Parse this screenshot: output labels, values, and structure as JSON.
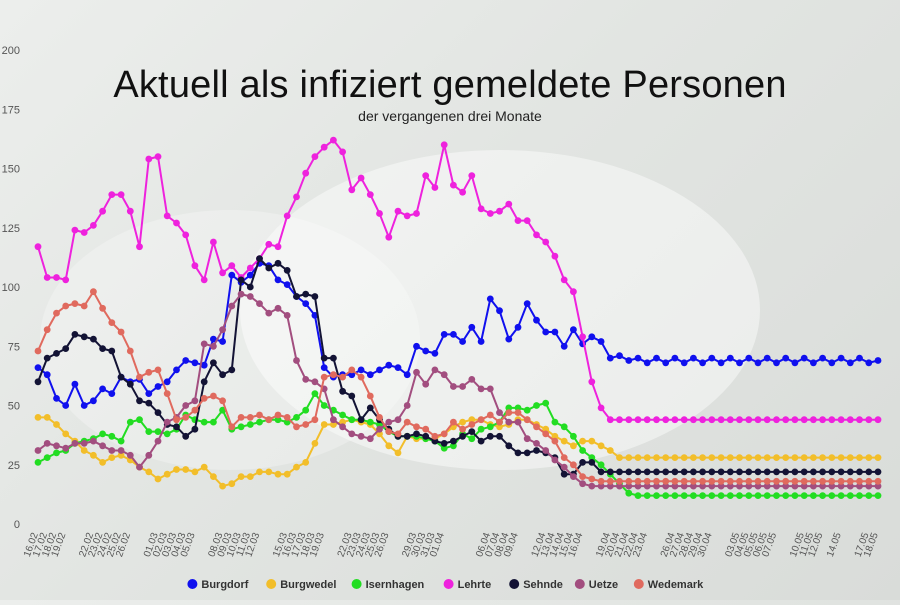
{
  "chart_data": {
    "type": "line",
    "title": "Aktuell als infiziert gemeldete Personen",
    "subtitle": "der vergangenen drei Monate",
    "ylim": [
      0,
      200
    ],
    "yticks": [
      0,
      25,
      50,
      75,
      100,
      125,
      150,
      175,
      200
    ],
    "grid": false,
    "legend_position": "bottom",
    "x": [
      "16.02",
      "17.02",
      "18.02",
      "19.02",
      "20.02",
      "21.02",
      "22.02",
      "23.02",
      "24.02",
      "25.02",
      "26.02",
      "27.02",
      "28.02",
      "01.03",
      "02.03",
      "03.03",
      "04.03",
      "05.03",
      "06.03",
      "07.03",
      "08.03",
      "09.03",
      "10.03",
      "11.03",
      "12.03",
      "13.03",
      "14.03",
      "15.03",
      "16.03",
      "17.03",
      "18.03",
      "19.03",
      "20.03",
      "21.03",
      "22.03",
      "23.03",
      "24.03",
      "25.03",
      "26.03",
      "27.03",
      "28.03",
      "29.03",
      "30.03",
      "31.03",
      "01.04",
      "02.04",
      "03.04",
      "04.04",
      "05.04",
      "06.04",
      "07.04",
      "08.04",
      "09.04",
      "10.04",
      "11.04",
      "12.04",
      "13.04",
      "14.04",
      "15.04",
      "16.04",
      "17.04",
      "18.04",
      "19.04",
      "20.04",
      "21.04",
      "22.04",
      "23.04",
      "24.04",
      "25.04",
      "26.04",
      "27.04",
      "28.04",
      "29.04",
      "30.04",
      "01.05",
      "02.05",
      "03.05",
      "04.05",
      "05.05",
      "06.05",
      "07.05",
      "08.05",
      "09.05",
      "10.05",
      "11.05",
      "12.05",
      "13.05",
      "14.05",
      "15.05",
      "16.05",
      "17.05",
      "18.05"
    ],
    "xtick_labels": [
      "16.02",
      "17.02",
      "18.02",
      "19.02",
      "22.02",
      "23.02",
      "24.02",
      "25.02",
      "26.02",
      "01.03",
      "02.03",
      "03.03",
      "04.03",
      "05.03",
      "08.03",
      "09.03",
      "10.03",
      "11.03",
      "12.03",
      "15.03",
      "16.03",
      "17.03",
      "18.03",
      "19.03",
      "22.03",
      "23.03",
      "24.03",
      "25.03",
      "26.03",
      "29.03",
      "30.03",
      "31.03",
      "01.04",
      "06.04",
      "07.04",
      "08.04",
      "09.04",
      "12.04",
      "13.04",
      "14.04",
      "15.04",
      "16.04",
      "19.04",
      "20.04",
      "21.04",
      "22.04",
      "23.04",
      "26.04",
      "27.04",
      "28.04",
      "29.04",
      "30.04",
      "03.05",
      "04.05",
      "05.05",
      "06.05",
      "07.05",
      "10.05",
      "11.05",
      "12.05",
      "14.05",
      "17.05",
      "18.05"
    ],
    "series": [
      {
        "name": "Burgdorf",
        "color": "#1010ee",
        "values": [
          66,
          63,
          53,
          50,
          59,
          50,
          52,
          57,
          55,
          62,
          60,
          61,
          55,
          58,
          60,
          65,
          69,
          68,
          67,
          78,
          77,
          105,
          102,
          105,
          110,
          109,
          103,
          101,
          96,
          93,
          88,
          66,
          62,
          63,
          63,
          65,
          63,
          65,
          67,
          66,
          63,
          75,
          73,
          72,
          80,
          80,
          77,
          83,
          77,
          95,
          90,
          78,
          83,
          93,
          86,
          81,
          81,
          75,
          82,
          76,
          79,
          77,
          70,
          71,
          69,
          70,
          68,
          70,
          68,
          70,
          68,
          70,
          68,
          70,
          68,
          70,
          68,
          70,
          68,
          70,
          68,
          70,
          68,
          70,
          68,
          70,
          68,
          70,
          68,
          70,
          68,
          69
        ]
      },
      {
        "name": "Burgwedel",
        "color": "#f2be2a",
        "values": [
          45,
          45,
          42,
          38,
          35,
          31,
          29,
          26,
          28,
          29,
          27,
          24,
          22,
          19,
          21,
          23,
          23,
          22,
          24,
          20,
          16,
          17,
          20,
          20,
          22,
          22,
          21,
          21,
          24,
          26,
          34,
          42,
          42,
          43,
          44,
          43,
          42,
          38,
          33,
          30,
          37,
          36,
          36,
          36,
          38,
          41,
          43,
          44,
          44,
          42,
          41,
          42,
          44,
          44,
          42,
          40,
          37,
          35,
          33,
          35,
          35,
          33,
          31,
          28,
          28,
          28,
          28,
          28,
          28,
          28,
          28,
          28,
          28,
          28,
          28,
          28,
          28,
          28,
          28,
          28,
          28,
          28,
          28,
          28,
          28,
          28,
          28,
          28,
          28,
          28,
          28,
          28
        ]
      },
      {
        "name": "Isernhagen",
        "color": "#22dd22",
        "values": [
          26,
          28,
          30,
          31,
          34,
          35,
          36,
          38,
          37,
          35,
          43,
          44,
          39,
          39,
          38,
          40,
          46,
          44,
          43,
          43,
          48,
          40,
          41,
          42,
          43,
          44,
          44,
          43,
          45,
          48,
          55,
          50,
          48,
          46,
          44,
          44,
          43,
          42,
          39,
          37,
          37,
          37,
          36,
          35,
          32,
          33,
          38,
          36,
          40,
          41,
          43,
          49,
          49,
          48,
          50,
          51,
          43,
          41,
          37,
          31,
          28,
          25,
          21,
          17,
          13,
          12,
          12,
          12,
          12,
          12,
          12,
          12,
          12,
          12,
          12,
          12,
          12,
          12,
          12,
          12,
          12,
          12,
          12,
          12,
          12,
          12,
          12,
          12,
          12,
          12,
          12,
          12
        ]
      },
      {
        "name": "Lehrte",
        "color": "#ee22dd",
        "values": [
          117,
          104,
          104,
          103,
          124,
          123,
          126,
          132,
          139,
          139,
          132,
          117,
          154,
          155,
          130,
          127,
          122,
          109,
          103,
          119,
          106,
          109,
          104,
          108,
          112,
          118,
          117,
          130,
          138,
          148,
          155,
          159,
          162,
          157,
          141,
          146,
          139,
          131,
          121,
          132,
          130,
          131,
          147,
          142,
          160,
          143,
          140,
          147,
          133,
          131,
          132,
          135,
          128,
          128,
          122,
          119,
          113,
          103,
          98,
          79,
          60,
          49,
          44,
          44,
          44,
          44,
          44,
          44,
          44,
          44,
          44,
          44,
          44,
          44,
          44,
          44,
          44,
          44,
          44,
          44,
          44,
          44,
          44,
          44,
          44,
          44,
          44,
          44,
          44,
          44,
          44,
          44
        ]
      },
      {
        "name": "Sehnde",
        "color": "#131335",
        "values": [
          60,
          70,
          72,
          74,
          80,
          79,
          78,
          74,
          73,
          62,
          59,
          52,
          51,
          47,
          42,
          41,
          37,
          40,
          60,
          68,
          63,
          65,
          103,
          100,
          112,
          108,
          110,
          107,
          96,
          97,
          96,
          70,
          70,
          56,
          54,
          44,
          49,
          44,
          40,
          37,
          37,
          38,
          37,
          35,
          34,
          35,
          37,
          39,
          35,
          37,
          37,
          33,
          30,
          30,
          31,
          30,
          28,
          21,
          21,
          26,
          26,
          22,
          22,
          22,
          22,
          22,
          22,
          22,
          22,
          22,
          22,
          22,
          22,
          22,
          22,
          22,
          22,
          22,
          22,
          22,
          22,
          22,
          22,
          22,
          22,
          22,
          22,
          22,
          22,
          22,
          22,
          22
        ]
      },
      {
        "name": "Uetze",
        "color": "#a24e7f",
        "values": [
          31,
          34,
          33,
          32,
          34,
          34,
          35,
          33,
          31,
          31,
          29,
          24,
          29,
          35,
          43,
          45,
          50,
          52,
          76,
          75,
          82,
          92,
          97,
          96,
          93,
          89,
          91,
          88,
          69,
          61,
          60,
          57,
          44,
          41,
          38,
          37,
          36,
          40,
          43,
          44,
          50,
          64,
          59,
          65,
          63,
          58,
          58,
          61,
          57,
          57,
          47,
          43,
          43,
          36,
          34,
          31,
          27,
          24,
          20,
          17,
          16,
          16,
          16,
          16,
          16,
          16,
          16,
          16,
          16,
          16,
          16,
          16,
          16,
          16,
          16,
          16,
          16,
          16,
          16,
          16,
          16,
          16,
          16,
          16,
          16,
          16,
          16,
          16,
          16,
          16,
          16,
          16
        ]
      },
      {
        "name": "Wedemark",
        "color": "#e06a5e",
        "values": [
          73,
          82,
          89,
          92,
          93,
          92,
          98,
          91,
          85,
          81,
          73,
          62,
          64,
          65,
          55,
          44,
          45,
          48,
          53,
          54,
          52,
          41,
          45,
          45,
          46,
          44,
          46,
          45,
          41,
          42,
          44,
          62,
          63,
          62,
          65,
          62,
          54,
          45,
          39,
          38,
          43,
          41,
          40,
          37,
          38,
          43,
          40,
          42,
          44,
          46,
          43,
          47,
          47,
          44,
          41,
          38,
          35,
          28,
          25,
          20,
          19,
          18,
          18,
          18,
          18,
          18,
          18,
          18,
          18,
          18,
          18,
          18,
          18,
          18,
          18,
          18,
          18,
          18,
          18,
          18,
          18,
          18,
          18,
          18,
          18,
          18,
          18,
          18,
          18,
          18,
          18,
          18
        ]
      }
    ]
  }
}
